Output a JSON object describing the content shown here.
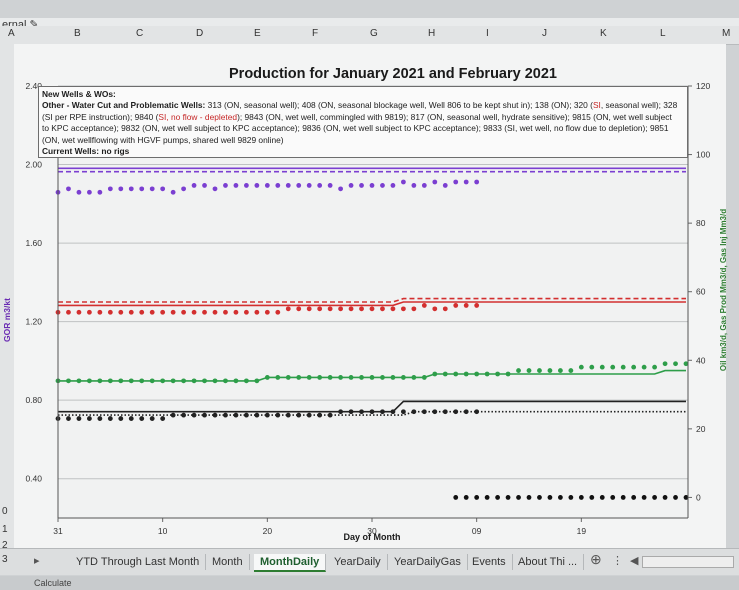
{
  "app": {
    "name_box": "ernal",
    "pencil_icon": "pencil-icon",
    "columns": [
      "A",
      "B",
      "C",
      "D",
      "E",
      "F",
      "G",
      "H",
      "I",
      "J",
      "K",
      "L",
      "M"
    ],
    "rows": [
      "0",
      "1",
      "2",
      "3"
    ],
    "tabs": [
      {
        "label": "YTD Through Last Month",
        "active": false
      },
      {
        "label": "Month",
        "active": false
      },
      {
        "label": "MonthDaily",
        "active": true
      },
      {
        "label": "YearDaily",
        "active": false
      },
      {
        "label": "YearDailyGas",
        "active": false
      },
      {
        "label": "Events",
        "active": false
      },
      {
        "label": "About Thi ...",
        "active": false
      }
    ],
    "add_sheet_icon": "plus-circle-icon",
    "status_text": "Calculate",
    "accent_color": "#2e7d32"
  },
  "annotation": {
    "line1": "New Wells & WOs:",
    "line2_label": "Other - Water Cut and Problematic Wells:",
    "line2_a": " 313 (ON, seasonal well); 408 (ON, seasonal blockage well, Well 806 to be kept shut in); 138 (ON); 320 (",
    "line2_si": "SI",
    "line2_b": ", seasonal well); 328",
    "line3_a": "(SI per RPE instruction); 9840 (",
    "line3_red": "SI, no flow - depleted",
    "line3_b": "); 9843 (ON, wet well, commingled with 9819); 817 (ON, seasonal well, hydrate sensitive); 9815 (ON, wet well subject",
    "line4": "to KPC acceptance); 9832 (ON, wet well subject to KPC acceptance); 9836 (ON, wet well subject to KPC acceptance); 9833 (SI, wet well, no flow due to depletion); 9851",
    "line5": "(ON, wet wellflowing with HGVF pumps, shared well 9829 online)",
    "line6": "Current Wells: no rigs"
  },
  "chart_data": {
    "type": "scatter",
    "title": "Production for January 2021 and February 2021",
    "xlabel": "Day of Month",
    "ylabel": "GOR m3/kt",
    "y2label": "Oil km3/d, Gas Prod Mm3/d, Gas Inj Mm3/d",
    "x_ticks": [
      "31",
      "10",
      "20",
      "30",
      "09",
      "19"
    ],
    "y_ticks": [
      "0.40",
      "0.80",
      "1.20",
      "1.60",
      "2.00",
      "2.40"
    ],
    "y_lim": [
      0.2,
      2.4
    ],
    "y2_ticks": [
      "0",
      "20",
      "40",
      "60",
      "80",
      "100",
      "120"
    ],
    "y2_lim": [
      -6,
      120
    ],
    "x_days": 61,
    "grid": true,
    "series": [
      {
        "color": "#7b3fd1",
        "axis": "y2",
        "style": "dots",
        "values": [
          89,
          90,
          89,
          89,
          89,
          90,
          90,
          90,
          90,
          90,
          90,
          89,
          90,
          91,
          91,
          90,
          91,
          91,
          91,
          91,
          91,
          91,
          91,
          91,
          91,
          91,
          91,
          90,
          91,
          91,
          91,
          91,
          91,
          92,
          91,
          91,
          92,
          91,
          92,
          92,
          92
        ]
      },
      {
        "color": "#7b3fd1",
        "axis": "y2",
        "style": "solid",
        "values": [
          96,
          96,
          96,
          96,
          96,
          96,
          96,
          96,
          96,
          96,
          96,
          96,
          96,
          96,
          96,
          96,
          96,
          96,
          96,
          96,
          96,
          96,
          96,
          96,
          96,
          96,
          96,
          96,
          96,
          96,
          96,
          96,
          96,
          96,
          96,
          96,
          96,
          96,
          96,
          96,
          96,
          96,
          96,
          96,
          96,
          96,
          96,
          96,
          96,
          96,
          96,
          96,
          96,
          96,
          96,
          96,
          96,
          96,
          96,
          96,
          96
        ]
      },
      {
        "color": "#7b3fd1",
        "axis": "y2",
        "style": "dashed",
        "values": [
          95,
          95,
          95,
          95,
          95,
          95,
          95,
          95,
          95,
          95,
          95,
          95,
          95,
          95,
          95,
          95,
          95,
          95,
          95,
          95,
          95,
          95,
          95,
          95,
          95,
          95,
          95,
          95,
          95,
          95,
          95,
          95,
          95,
          95,
          95,
          95,
          95,
          95,
          95,
          95,
          95,
          95,
          95,
          95,
          95,
          95,
          95,
          95,
          95,
          95,
          95,
          95,
          95,
          95,
          95,
          95,
          95,
          95,
          95,
          95,
          95
        ]
      },
      {
        "color": "#d32f2f",
        "axis": "y2",
        "style": "dots",
        "values": [
          54,
          54,
          54,
          54,
          54,
          54,
          54,
          54,
          54,
          54,
          54,
          54,
          54,
          54,
          54,
          54,
          54,
          54,
          54,
          54,
          54,
          54,
          55,
          55,
          55,
          55,
          55,
          55,
          55,
          55,
          55,
          55,
          55,
          55,
          55,
          56,
          55,
          55,
          56,
          56,
          56
        ]
      },
      {
        "color": "#d32f2f",
        "axis": "y2",
        "style": "solid",
        "values": [
          56,
          56,
          56,
          56,
          56,
          56,
          56,
          56,
          56,
          56,
          56,
          56,
          56,
          56,
          56,
          56,
          56,
          56,
          56,
          56,
          56,
          56,
          56,
          56,
          56,
          56,
          56,
          56,
          56,
          56,
          56,
          56,
          56,
          57,
          57,
          57,
          57,
          57,
          57,
          57,
          57,
          57,
          57,
          57,
          57,
          57,
          57,
          57,
          57,
          57,
          57,
          57,
          57,
          57,
          57,
          57,
          57,
          57,
          57,
          57,
          57
        ]
      },
      {
        "color": "#d32f2f",
        "axis": "y2",
        "style": "dashed",
        "values": [
          57,
          57,
          57,
          57,
          57,
          57,
          57,
          57,
          57,
          57,
          57,
          57,
          57,
          57,
          57,
          57,
          57,
          57,
          57,
          57,
          57,
          57,
          57,
          57,
          57,
          57,
          57,
          57,
          57,
          57,
          57,
          57,
          57,
          58,
          58,
          58,
          58,
          58,
          58,
          58,
          58,
          58,
          58,
          58,
          58,
          58,
          58,
          58,
          58,
          58,
          58,
          58,
          58,
          58,
          58,
          58,
          58,
          58,
          58,
          58,
          58
        ]
      },
      {
        "color": "#2e9e4a",
        "axis": "y2",
        "style": "dots",
        "values": [
          34,
          34,
          34,
          34,
          34,
          34,
          34,
          34,
          34,
          34,
          34,
          34,
          34,
          34,
          34,
          34,
          34,
          34,
          34,
          34,
          35,
          35,
          35,
          35,
          35,
          35,
          35,
          35,
          35,
          35,
          35,
          35,
          35,
          35,
          35,
          35,
          36,
          36,
          36,
          36,
          36,
          36,
          36,
          36,
          37,
          37,
          37,
          37,
          37,
          37,
          38,
          38,
          38,
          38,
          38,
          38,
          38,
          38,
          39,
          39,
          39
        ]
      },
      {
        "color": "#2e9e4a",
        "axis": "y2",
        "style": "solid",
        "values": [
          34,
          34,
          34,
          34,
          34,
          34,
          34,
          34,
          34,
          34,
          34,
          34,
          34,
          34,
          34,
          34,
          34,
          34,
          34,
          34,
          35,
          35,
          35,
          35,
          35,
          35,
          35,
          35,
          35,
          35,
          35,
          35,
          35,
          35,
          35,
          35,
          36,
          36,
          36,
          36,
          36,
          36,
          36,
          36,
          36,
          36,
          36,
          36,
          36,
          36,
          36,
          36,
          36,
          36,
          36,
          36,
          36,
          36,
          37,
          37,
          37
        ]
      },
      {
        "color": "#222222",
        "axis": "y2",
        "style": "dots",
        "values": [
          23,
          23,
          23,
          23,
          23,
          23,
          23,
          23,
          23,
          23,
          23,
          24,
          24,
          24,
          24,
          24,
          24,
          24,
          24,
          24,
          24,
          24,
          24,
          24,
          24,
          24,
          24,
          25,
          25,
          25,
          25,
          25,
          25,
          25,
          25,
          25,
          25,
          25,
          25,
          25,
          25
        ]
      },
      {
        "color": "#222222",
        "axis": "y2",
        "style": "solid",
        "values": [
          25,
          25,
          25,
          25,
          25,
          25,
          25,
          25,
          25,
          25,
          25,
          25,
          25,
          25,
          25,
          25,
          25,
          25,
          25,
          25,
          25,
          25,
          25,
          25,
          25,
          25,
          25,
          25,
          25,
          25,
          25,
          25,
          25,
          28,
          28,
          28,
          28,
          28,
          28,
          28,
          28,
          28,
          28,
          28,
          28,
          28,
          28,
          28,
          28,
          28,
          28,
          28,
          28,
          28,
          28,
          28,
          28,
          28,
          28,
          28,
          28
        ]
      },
      {
        "color": "#222222",
        "axis": "y2",
        "style": "dotted",
        "values": [
          24,
          24,
          24,
          24,
          24,
          24,
          24,
          24,
          24,
          24,
          24,
          24,
          24,
          24,
          24,
          24,
          24,
          24,
          24,
          24,
          24,
          24,
          24,
          24,
          24,
          24,
          24,
          24,
          24,
          24,
          24,
          24,
          24,
          24,
          25,
          25,
          25,
          25,
          25,
          25,
          25,
          25,
          25,
          25,
          25,
          25,
          25,
          25,
          25,
          25,
          25,
          25,
          25,
          25,
          25,
          25,
          25,
          25,
          25,
          25,
          25
        ]
      },
      {
        "color": "#111111",
        "axis": "y2",
        "style": "dots",
        "start_day": 38,
        "values": [
          0,
          0,
          0,
          0,
          0,
          0,
          0,
          0,
          0,
          0,
          0,
          0,
          0,
          0,
          0,
          0,
          0,
          0,
          0,
          0,
          0,
          0,
          0
        ]
      }
    ]
  }
}
